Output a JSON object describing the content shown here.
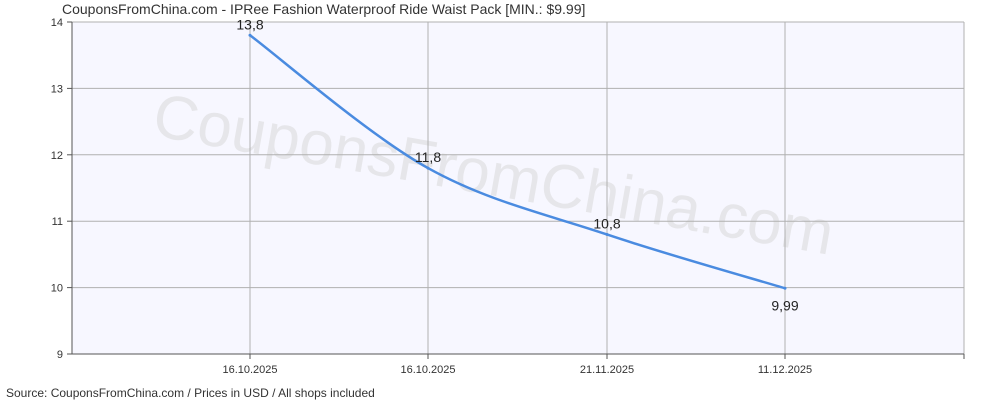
{
  "title": "CouponsFromChina.com - IPRee Fashion Waterproof Ride Waist Pack [MIN.: $9.99]",
  "source": "Source:  CouponsFromChina.com / Prices in USD / All shops included",
  "watermark": "CouponsFromChina.com",
  "colors": {
    "line": "#4a8be0",
    "grid": "#b0b0b0",
    "plot_bg": "#f7f7ff",
    "axis": "#555555"
  },
  "chart_data": {
    "type": "line",
    "title": "CouponsFromChina.com - IPRee Fashion Waterproof Ride Waist Pack [MIN.: $9.99]",
    "xlabel": "",
    "ylabel": "",
    "x": [
      "16.10.2025",
      "16.10.2025",
      "21.11.2025",
      "11.12.2025"
    ],
    "series": [
      {
        "values": [
          13.8,
          11.8,
          10.8,
          9.99
        ],
        "labels": [
          "13,8",
          "11,8",
          "10,8",
          "9,99"
        ]
      }
    ],
    "ylim": [
      9,
      14
    ],
    "yticks": [
      9,
      10,
      11,
      12,
      13,
      14
    ],
    "grid": true,
    "legend": "none"
  }
}
